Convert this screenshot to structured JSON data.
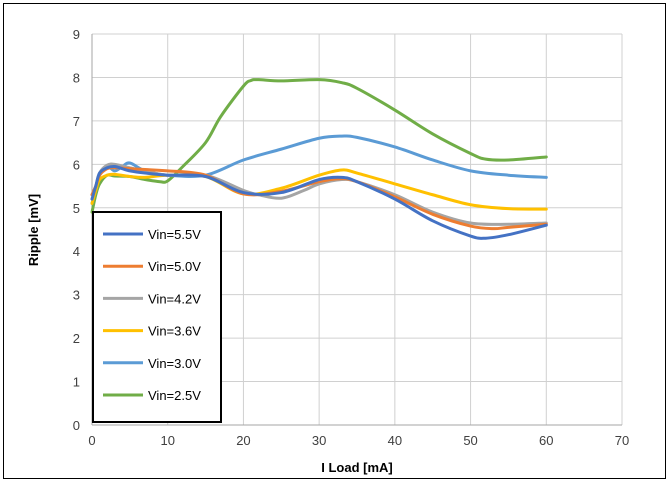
{
  "chart_data": {
    "type": "line",
    "title": "",
    "xlabel": "I Load [mA]",
    "ylabel": "Ripple [mV]",
    "xlim": [
      0,
      70
    ],
    "ylim": [
      0,
      9
    ],
    "xticks": [
      0,
      10,
      20,
      30,
      40,
      50,
      60,
      70
    ],
    "yticks": [
      0,
      1,
      2,
      3,
      4,
      5,
      6,
      7,
      8,
      9
    ],
    "grid": true,
    "legend_position": "bottom-left",
    "series": [
      {
        "name": "Vin=5.5V",
        "color": "#4472C4",
        "x": [
          0,
          0.5,
          1,
          2,
          3,
          4,
          5,
          7,
          10,
          15,
          20,
          25,
          30,
          33,
          35,
          40,
          45,
          50,
          52,
          55,
          60
        ],
        "y": [
          5.2,
          5.5,
          5.8,
          5.92,
          5.95,
          5.9,
          5.85,
          5.8,
          5.75,
          5.72,
          5.35,
          5.35,
          5.65,
          5.7,
          5.6,
          5.2,
          4.7,
          4.35,
          4.3,
          4.38,
          4.6
        ]
      },
      {
        "name": "Vin=5.0V",
        "color": "#ED7D31",
        "x": [
          0,
          0.5,
          1,
          2,
          3,
          5,
          7,
          10,
          15,
          20,
          25,
          30,
          33,
          35,
          40,
          45,
          50,
          53,
          55,
          60
        ],
        "y": [
          5.3,
          5.5,
          5.75,
          5.9,
          5.92,
          5.9,
          5.88,
          5.85,
          5.75,
          5.32,
          5.38,
          5.6,
          5.67,
          5.6,
          5.25,
          4.85,
          4.58,
          4.52,
          4.55,
          4.62
        ]
      },
      {
        "name": "Vin=4.2V",
        "color": "#A5A5A5",
        "x": [
          0,
          0.5,
          1,
          2,
          3,
          5,
          7,
          10,
          15,
          20,
          22,
          25,
          28,
          30,
          33,
          35,
          40,
          45,
          50,
          55,
          60
        ],
        "y": [
          5.3,
          5.5,
          5.8,
          5.98,
          6.0,
          5.92,
          5.85,
          5.75,
          5.75,
          5.4,
          5.3,
          5.22,
          5.4,
          5.55,
          5.65,
          5.6,
          5.3,
          4.9,
          4.65,
          4.62,
          4.65
        ]
      },
      {
        "name": "Vin=3.6V",
        "color": "#FFC000",
        "x": [
          0,
          0.5,
          1,
          2,
          3,
          5,
          7,
          10,
          15,
          20,
          25,
          30,
          33,
          35,
          40,
          45,
          50,
          55,
          60
        ],
        "y": [
          5.1,
          5.4,
          5.65,
          5.75,
          5.77,
          5.72,
          5.7,
          5.75,
          5.72,
          5.32,
          5.45,
          5.75,
          5.87,
          5.8,
          5.55,
          5.3,
          5.07,
          4.98,
          4.97
        ]
      },
      {
        "name": "Vin=3.0V",
        "color": "#5B9BD5",
        "x": [
          0,
          0.5,
          1,
          2,
          3,
          4,
          5,
          7,
          10,
          15,
          20,
          25,
          30,
          33,
          35,
          40,
          45,
          50,
          55,
          60
        ],
        "y": [
          5.1,
          5.4,
          5.75,
          5.95,
          5.85,
          5.95,
          6.03,
          5.85,
          5.75,
          5.75,
          6.1,
          6.35,
          6.6,
          6.65,
          6.62,
          6.4,
          6.1,
          5.85,
          5.75,
          5.7
        ]
      },
      {
        "name": "Vin=2.5V",
        "color": "#70AD47",
        "x": [
          0,
          0.5,
          1,
          2,
          3,
          5,
          7,
          9,
          10,
          12,
          15,
          17,
          20,
          21,
          22,
          25,
          30,
          33,
          35,
          40,
          45,
          50,
          52,
          55,
          60
        ],
        "y": [
          4.9,
          5.3,
          5.55,
          5.75,
          5.73,
          5.72,
          5.65,
          5.6,
          5.62,
          5.95,
          6.5,
          7.1,
          7.8,
          7.93,
          7.95,
          7.92,
          7.95,
          7.88,
          7.75,
          7.25,
          6.7,
          6.25,
          6.12,
          6.1,
          6.17
        ]
      }
    ]
  }
}
